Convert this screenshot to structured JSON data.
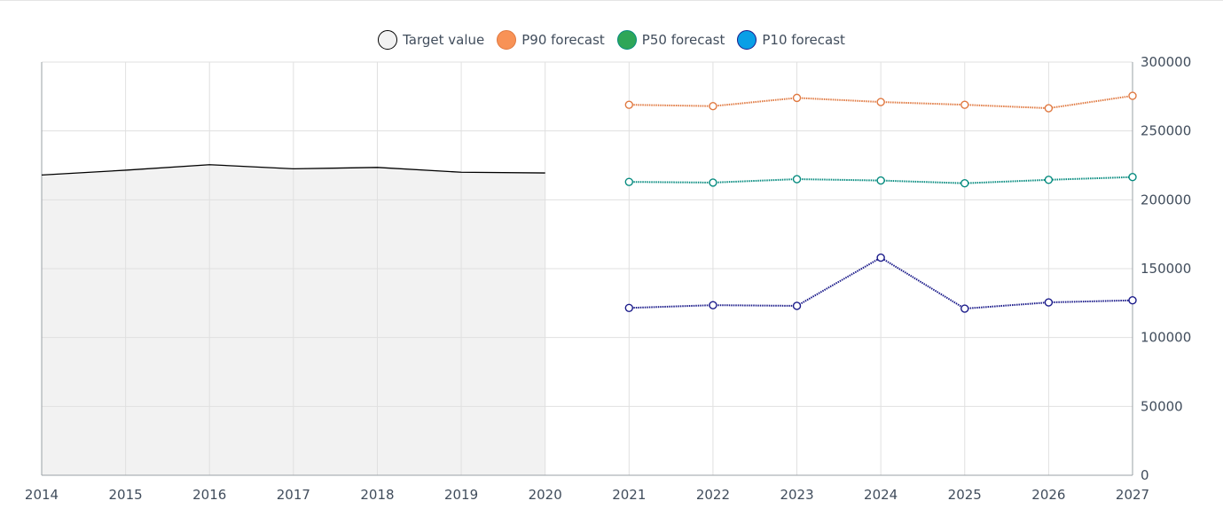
{
  "chart_data": {
    "type": "line",
    "x": [
      2014,
      2015,
      2016,
      2017,
      2018,
      2019,
      2020,
      2021,
      2022,
      2023,
      2024,
      2025,
      2026,
      2027
    ],
    "xlim": [
      2014,
      2027
    ],
    "ylim": [
      0,
      300000
    ],
    "yticks": [
      0,
      50000,
      100000,
      150000,
      200000,
      250000,
      300000
    ],
    "ytick_labels": [
      "0",
      "50000",
      "100000",
      "150000",
      "200000",
      "250000",
      "300000"
    ],
    "xtick_labels": [
      "2014",
      "2015",
      "2016",
      "2017",
      "2018",
      "2019",
      "2020",
      "2021",
      "2022",
      "2023",
      "2024",
      "2025",
      "2026",
      "2027"
    ],
    "y_axis_side": "right",
    "grid": true,
    "legend_position": "top-center",
    "series": [
      {
        "name": "Target value",
        "style": "area",
        "color": "#000000",
        "fill": "#f2f2f2",
        "legend_fill": "#f2f2f2",
        "x": [
          2014,
          2015,
          2016,
          2017,
          2018,
          2019,
          2020
        ],
        "values": [
          218000,
          221500,
          225500,
          222500,
          223500,
          220000,
          219500
        ]
      },
      {
        "name": "P90 forecast",
        "style": "dotted-line-markers",
        "color": "#e07941",
        "legend_fill": "#f89256",
        "x": [
          2021,
          2022,
          2023,
          2024,
          2025,
          2026,
          2027
        ],
        "values": [
          269000,
          268000,
          274000,
          271000,
          269000,
          266500,
          275500
        ]
      },
      {
        "name": "P50 forecast",
        "style": "dotted-line-markers",
        "color": "#068b7f",
        "legend_fill": "#2ea658",
        "x": [
          2021,
          2022,
          2023,
          2024,
          2025,
          2026,
          2027
        ],
        "values": [
          213000,
          212500,
          215000,
          214000,
          212000,
          214500,
          216500
        ]
      },
      {
        "name": "P10 forecast",
        "style": "dotted-line-markers",
        "color": "#1b1b8a",
        "legend_fill": "#0a9fe6",
        "x": [
          2021,
          2022,
          2023,
          2024,
          2025,
          2026,
          2027
        ],
        "values": [
          121500,
          123500,
          123000,
          158000,
          121000,
          125500,
          127000
        ]
      }
    ]
  }
}
